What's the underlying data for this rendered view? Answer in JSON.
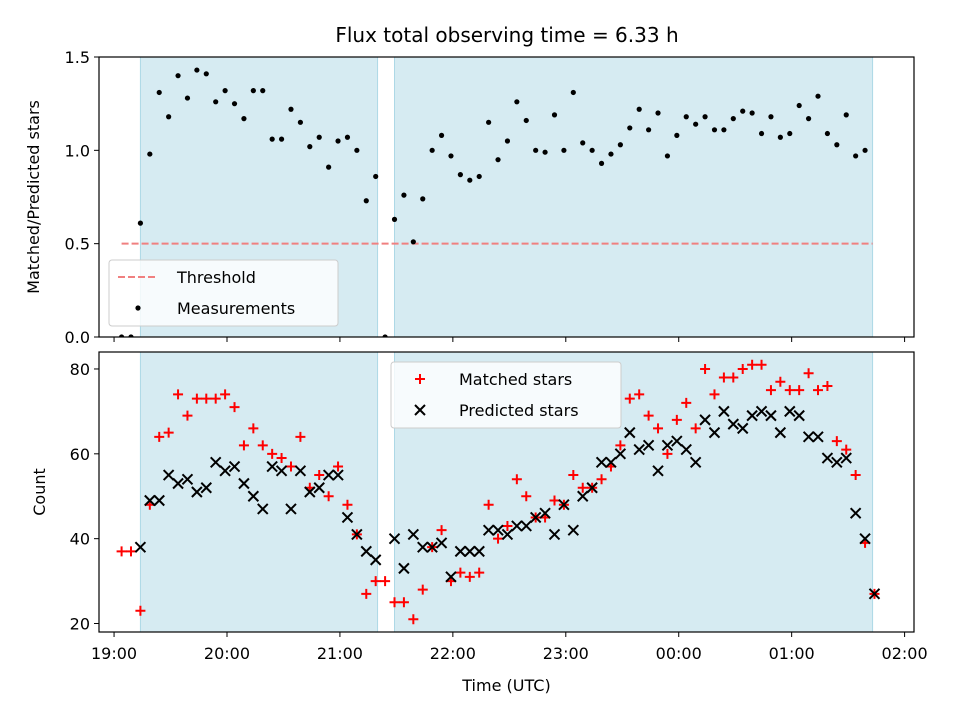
{
  "chart_data": [
    {
      "type": "scatter",
      "title": "Flux total observing time = 6.33 h",
      "ylabel": "Matched/Predicted stars",
      "xlabel": "",
      "xlim": [
        "18:52",
        "02:05"
      ],
      "ylim": [
        0,
        1.5
      ],
      "y_ticks": [
        "0.0",
        "0.5",
        "1.0",
        "1.5"
      ],
      "x_ticks": [
        "19:00",
        "20:00",
        "21:00",
        "22:00",
        "23:00",
        "00:00",
        "01:00",
        "02:00"
      ],
      "shaded_intervals": [
        [
          "19:14",
          "21:20"
        ],
        [
          "21:29",
          "01:43"
        ]
      ],
      "threshold": {
        "name": "Threshold",
        "value": 0.5,
        "x_start": "19:04",
        "x_end": "01:43",
        "color": "#f08080"
      },
      "legend": {
        "position": "lower-left",
        "entries": [
          "Threshold",
          "Measurements"
        ]
      },
      "series": [
        {
          "name": "Measurements",
          "color": "#000000",
          "marker": "dot",
          "points": [
            [
              "19:04",
              0.0
            ],
            [
              "19:09",
              0.0
            ],
            [
              "19:14",
              0.61
            ],
            [
              "19:19",
              0.98
            ],
            [
              "19:24",
              1.31
            ],
            [
              "19:29",
              1.18
            ],
            [
              "19:34",
              1.4
            ],
            [
              "19:39",
              1.28
            ],
            [
              "19:44",
              1.43
            ],
            [
              "19:49",
              1.41
            ],
            [
              "19:54",
              1.26
            ],
            [
              "19:59",
              1.32
            ],
            [
              "20:04",
              1.25
            ],
            [
              "20:09",
              1.17
            ],
            [
              "20:14",
              1.32
            ],
            [
              "20:19",
              1.32
            ],
            [
              "20:24",
              1.06
            ],
            [
              "20:29",
              1.06
            ],
            [
              "20:34",
              1.22
            ],
            [
              "20:39",
              1.15
            ],
            [
              "20:44",
              1.02
            ],
            [
              "20:49",
              1.07
            ],
            [
              "20:54",
              0.91
            ],
            [
              "20:59",
              1.05
            ],
            [
              "21:04",
              1.07
            ],
            [
              "21:09",
              1.0
            ],
            [
              "21:14",
              0.73
            ],
            [
              "21:19",
              0.86
            ],
            [
              "21:24",
              0.0
            ],
            [
              "21:29",
              0.63
            ],
            [
              "21:34",
              0.76
            ],
            [
              "21:39",
              0.51
            ],
            [
              "21:44",
              0.74
            ],
            [
              "21:49",
              1.0
            ],
            [
              "21:54",
              1.08
            ],
            [
              "21:59",
              0.97
            ],
            [
              "22:04",
              0.87
            ],
            [
              "22:09",
              0.84
            ],
            [
              "22:14",
              0.86
            ],
            [
              "22:19",
              1.15
            ],
            [
              "22:24",
              0.95
            ],
            [
              "22:29",
              1.05
            ],
            [
              "22:34",
              1.26
            ],
            [
              "22:39",
              1.16
            ],
            [
              "22:44",
              1.0
            ],
            [
              "22:49",
              0.99
            ],
            [
              "22:54",
              1.19
            ],
            [
              "22:59",
              1.0
            ],
            [
              "23:04",
              1.31
            ],
            [
              "23:09",
              1.04
            ],
            [
              "23:14",
              1.0
            ],
            [
              "23:19",
              0.93
            ],
            [
              "23:24",
              0.98
            ],
            [
              "23:29",
              1.03
            ],
            [
              "23:34",
              1.12
            ],
            [
              "23:39",
              1.22
            ],
            [
              "23:44",
              1.11
            ],
            [
              "23:49",
              1.2
            ],
            [
              "23:54",
              0.97
            ],
            [
              "23:59",
              1.08
            ],
            [
              "00:04",
              1.18
            ],
            [
              "00:09",
              1.14
            ],
            [
              "00:14",
              1.18
            ],
            [
              "00:19",
              1.11
            ],
            [
              "00:24",
              1.11
            ],
            [
              "00:29",
              1.17
            ],
            [
              "00:34",
              1.21
            ],
            [
              "00:39",
              1.2
            ],
            [
              "00:44",
              1.09
            ],
            [
              "00:49",
              1.18
            ],
            [
              "00:54",
              1.07
            ],
            [
              "00:59",
              1.09
            ],
            [
              "01:04",
              1.24
            ],
            [
              "01:09",
              1.17
            ],
            [
              "01:14",
              1.29
            ],
            [
              "01:19",
              1.09
            ],
            [
              "01:24",
              1.03
            ],
            [
              "01:29",
              1.19
            ],
            [
              "01:34",
              0.97
            ],
            [
              "01:39",
              1.0
            ]
          ]
        }
      ]
    },
    {
      "type": "scatter",
      "title": "",
      "ylabel": "Count",
      "xlabel": "Time (UTC)",
      "xlim": [
        "18:52",
        "02:05"
      ],
      "ylim": [
        18,
        84
      ],
      "y_ticks": [
        "20",
        "40",
        "60",
        "80"
      ],
      "x_ticks": [
        "19:00",
        "20:00",
        "21:00",
        "22:00",
        "23:00",
        "00:00",
        "01:00",
        "02:00"
      ],
      "shaded_intervals": [
        [
          "19:14",
          "21:20"
        ],
        [
          "21:29",
          "01:43"
        ]
      ],
      "legend": {
        "position": "upper-center",
        "entries": [
          "Matched stars",
          "Predicted stars"
        ]
      },
      "series": [
        {
          "name": "Matched stars",
          "color": "#ff0000",
          "marker": "plus",
          "points": [
            [
              "19:04",
              37
            ],
            [
              "19:09",
              37
            ],
            [
              "19:14",
              23
            ],
            [
              "19:19",
              48
            ],
            [
              "19:24",
              64
            ],
            [
              "19:29",
              65
            ],
            [
              "19:34",
              74
            ],
            [
              "19:39",
              69
            ],
            [
              "19:44",
              73
            ],
            [
              "19:49",
              73
            ],
            [
              "19:54",
              73
            ],
            [
              "19:59",
              74
            ],
            [
              "20:04",
              71
            ],
            [
              "20:09",
              62
            ],
            [
              "20:14",
              66
            ],
            [
              "20:19",
              62
            ],
            [
              "20:24",
              60
            ],
            [
              "20:29",
              59
            ],
            [
              "20:34",
              57
            ],
            [
              "20:39",
              64
            ],
            [
              "20:44",
              52
            ],
            [
              "20:49",
              55
            ],
            [
              "20:54",
              50
            ],
            [
              "20:59",
              57
            ],
            [
              "21:04",
              48
            ],
            [
              "21:09",
              41
            ],
            [
              "21:14",
              27
            ],
            [
              "21:19",
              30
            ],
            [
              "21:24",
              30
            ],
            [
              "21:29",
              25
            ],
            [
              "21:34",
              25
            ],
            [
              "21:39",
              21
            ],
            [
              "21:44",
              28
            ],
            [
              "21:49",
              38
            ],
            [
              "21:54",
              42
            ],
            [
              "21:59",
              30
            ],
            [
              "22:04",
              32
            ],
            [
              "22:09",
              31
            ],
            [
              "22:14",
              32
            ],
            [
              "22:19",
              48
            ],
            [
              "22:24",
              40
            ],
            [
              "22:29",
              43
            ],
            [
              "22:34",
              54
            ],
            [
              "22:39",
              50
            ],
            [
              "22:44",
              45
            ],
            [
              "22:49",
              45
            ],
            [
              "22:54",
              49
            ],
            [
              "22:59",
              48
            ],
            [
              "23:04",
              55
            ],
            [
              "23:09",
              52
            ],
            [
              "23:14",
              52
            ],
            [
              "23:19",
              54
            ],
            [
              "23:24",
              57
            ],
            [
              "23:29",
              62
            ],
            [
              "23:34",
              73
            ],
            [
              "23:39",
              74
            ],
            [
              "23:44",
              69
            ],
            [
              "23:49",
              66
            ],
            [
              "23:54",
              60
            ],
            [
              "23:59",
              68
            ],
            [
              "00:04",
              72
            ],
            [
              "00:09",
              66
            ],
            [
              "00:14",
              80
            ],
            [
              "00:19",
              74
            ],
            [
              "00:24",
              78
            ],
            [
              "00:29",
              78
            ],
            [
              "00:34",
              80
            ],
            [
              "00:39",
              81
            ],
            [
              "00:44",
              81
            ],
            [
              "00:49",
              75
            ],
            [
              "00:54",
              77
            ],
            [
              "00:59",
              75
            ],
            [
              "01:04",
              75
            ],
            [
              "01:09",
              79
            ],
            [
              "01:14",
              75
            ],
            [
              "01:19",
              76
            ],
            [
              "01:24",
              63
            ],
            [
              "01:29",
              61
            ],
            [
              "01:34",
              55
            ],
            [
              "01:39",
              39
            ],
            [
              "01:44",
              27
            ]
          ]
        },
        {
          "name": "Predicted stars",
          "color": "#000000",
          "marker": "x",
          "points": [
            [
              "19:14",
              38
            ],
            [
              "19:19",
              49
            ],
            [
              "19:24",
              49
            ],
            [
              "19:29",
              55
            ],
            [
              "19:34",
              53
            ],
            [
              "19:39",
              54
            ],
            [
              "19:44",
              51
            ],
            [
              "19:49",
              52
            ],
            [
              "19:54",
              58
            ],
            [
              "19:59",
              56
            ],
            [
              "20:04",
              57
            ],
            [
              "20:09",
              53
            ],
            [
              "20:14",
              50
            ],
            [
              "20:19",
              47
            ],
            [
              "20:24",
              57
            ],
            [
              "20:29",
              56
            ],
            [
              "20:34",
              47
            ],
            [
              "20:39",
              56
            ],
            [
              "20:44",
              51
            ],
            [
              "20:49",
              52
            ],
            [
              "20:54",
              55
            ],
            [
              "20:59",
              55
            ],
            [
              "21:04",
              45
            ],
            [
              "21:09",
              41
            ],
            [
              "21:14",
              37
            ],
            [
              "21:19",
              35
            ],
            [
              "21:29",
              40
            ],
            [
              "21:34",
              33
            ],
            [
              "21:39",
              41
            ],
            [
              "21:44",
              38
            ],
            [
              "21:49",
              38
            ],
            [
              "21:54",
              39
            ],
            [
              "21:59",
              31
            ],
            [
              "22:04",
              37
            ],
            [
              "22:09",
              37
            ],
            [
              "22:14",
              37
            ],
            [
              "22:19",
              42
            ],
            [
              "22:24",
              42
            ],
            [
              "22:29",
              41
            ],
            [
              "22:34",
              43
            ],
            [
              "22:39",
              43
            ],
            [
              "22:44",
              45
            ],
            [
              "22:49",
              46
            ],
            [
              "22:54",
              41
            ],
            [
              "22:59",
              48
            ],
            [
              "23:04",
              42
            ],
            [
              "23:09",
              50
            ],
            [
              "23:14",
              52
            ],
            [
              "23:19",
              58
            ],
            [
              "23:24",
              58
            ],
            [
              "23:29",
              60
            ],
            [
              "23:34",
              65
            ],
            [
              "23:39",
              61
            ],
            [
              "23:44",
              62
            ],
            [
              "23:49",
              56
            ],
            [
              "23:54",
              62
            ],
            [
              "23:59",
              63
            ],
            [
              "00:04",
              61
            ],
            [
              "00:09",
              58
            ],
            [
              "00:14",
              68
            ],
            [
              "00:19",
              65
            ],
            [
              "00:24",
              70
            ],
            [
              "00:29",
              67
            ],
            [
              "00:34",
              66
            ],
            [
              "00:39",
              69
            ],
            [
              "00:44",
              70
            ],
            [
              "00:49",
              69
            ],
            [
              "00:54",
              65
            ],
            [
              "00:59",
              70
            ],
            [
              "01:04",
              69
            ],
            [
              "01:09",
              64
            ],
            [
              "01:14",
              64
            ],
            [
              "01:19",
              59
            ],
            [
              "01:24",
              58
            ],
            [
              "01:29",
              59
            ],
            [
              "01:34",
              46
            ],
            [
              "01:39",
              40
            ],
            [
              "01:44",
              27
            ]
          ]
        }
      ]
    }
  ]
}
